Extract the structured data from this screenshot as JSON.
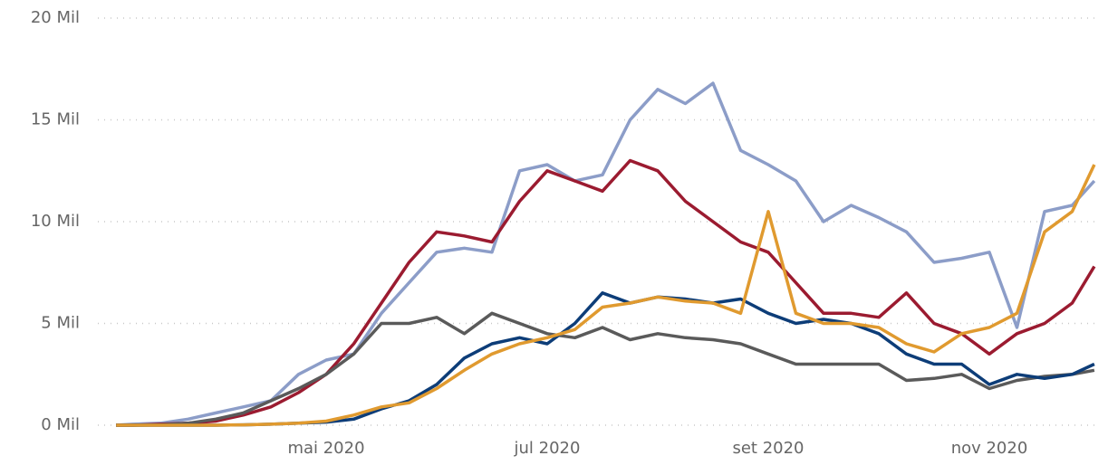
{
  "chart_data": {
    "type": "line",
    "x": [
      3.1,
      3.25,
      3.5,
      3.75,
      4,
      4.25,
      4.5,
      4.75,
      5,
      5.25,
      5.5,
      5.75,
      6,
      6.25,
      6.5,
      6.75,
      7,
      7.25,
      7.5,
      7.75,
      8,
      8.25,
      8.5,
      8.75,
      9,
      9.25,
      9.5,
      9.75,
      10,
      10.25,
      10.5,
      10.75,
      11,
      11.25,
      11.5,
      11.75,
      11.95
    ],
    "series": [
      {
        "color": "#8c9dc8",
        "values": [
          0,
          0.05,
          0.1,
          0.3,
          0.6,
          0.9,
          1.2,
          2.5,
          3.2,
          3.5,
          5.5,
          7,
          8.5,
          8.7,
          8.5,
          12.5,
          12.8,
          12,
          12.3,
          15,
          16.5,
          15.8,
          16.8,
          13.5,
          12.8,
          12,
          10,
          10.8,
          10.2,
          9.5,
          8,
          8.2,
          8.5,
          4.8,
          10.5,
          10.8,
          12
        ]
      },
      {
        "color": "#9b1b30",
        "values": [
          0,
          0,
          0.05,
          0.1,
          0.2,
          0.5,
          0.9,
          1.6,
          2.5,
          4,
          6,
          8,
          9.5,
          9.3,
          9,
          11,
          12.5,
          12,
          11.5,
          13,
          12.5,
          11,
          10,
          9,
          8.5,
          7,
          5.5,
          5.5,
          5.3,
          6.5,
          5,
          4.5,
          3.5,
          4.5,
          5,
          6,
          7.8
        ]
      },
      {
        "color": "#5a5a5a",
        "values": [
          0,
          0,
          0.02,
          0.1,
          0.3,
          0.6,
          1.2,
          1.8,
          2.5,
          3.5,
          5,
          5,
          5.3,
          4.5,
          5.5,
          5,
          4.5,
          4.3,
          4.8,
          4.2,
          4.5,
          4.3,
          4.2,
          4,
          3.5,
          3,
          3,
          3,
          3,
          2.2,
          2.3,
          2.5,
          1.8,
          2.2,
          2.4,
          2.5,
          2.7
        ]
      },
      {
        "color": "#0d3d78",
        "values": [
          0,
          0,
          0,
          0,
          0,
          0.02,
          0.05,
          0.1,
          0.15,
          0.3,
          0.8,
          1.2,
          2,
          3.3,
          4,
          4.3,
          4,
          5,
          6.5,
          6,
          6.3,
          6.2,
          6,
          6.2,
          5.5,
          5,
          5.2,
          5,
          4.5,
          3.5,
          3,
          3,
          2,
          2.5,
          2.3,
          2.5,
          3
        ]
      },
      {
        "color": "#e09a2f",
        "values": [
          0,
          0,
          0,
          0,
          0,
          0.02,
          0.05,
          0.1,
          0.2,
          0.5,
          0.9,
          1.1,
          1.8,
          2.7,
          3.5,
          4,
          4.3,
          4.7,
          5.8,
          6,
          6.3,
          6.1,
          6,
          5.5,
          10.5,
          5.5,
          5,
          5,
          4.8,
          4,
          3.6,
          4.5,
          4.8,
          5.5,
          9.5,
          10.5,
          12.8
        ]
      }
    ],
    "xlim": [
      3,
      12
    ],
    "xticks": [
      {
        "value": 5,
        "label": "mai 2020"
      },
      {
        "value": 7,
        "label": "jul 2020"
      },
      {
        "value": 9,
        "label": "set 2020"
      },
      {
        "value": 11,
        "label": "nov 2020"
      }
    ],
    "ylim": [
      0,
      20
    ],
    "yticks": [
      {
        "value": 0,
        "label": "0 Mil"
      },
      {
        "value": 5,
        "label": "5 Mil"
      },
      {
        "value": 10,
        "label": "10 Mil"
      },
      {
        "value": 15,
        "label": "15 Mil"
      },
      {
        "value": 20,
        "label": "20 Mil"
      }
    ],
    "grid": true
  }
}
